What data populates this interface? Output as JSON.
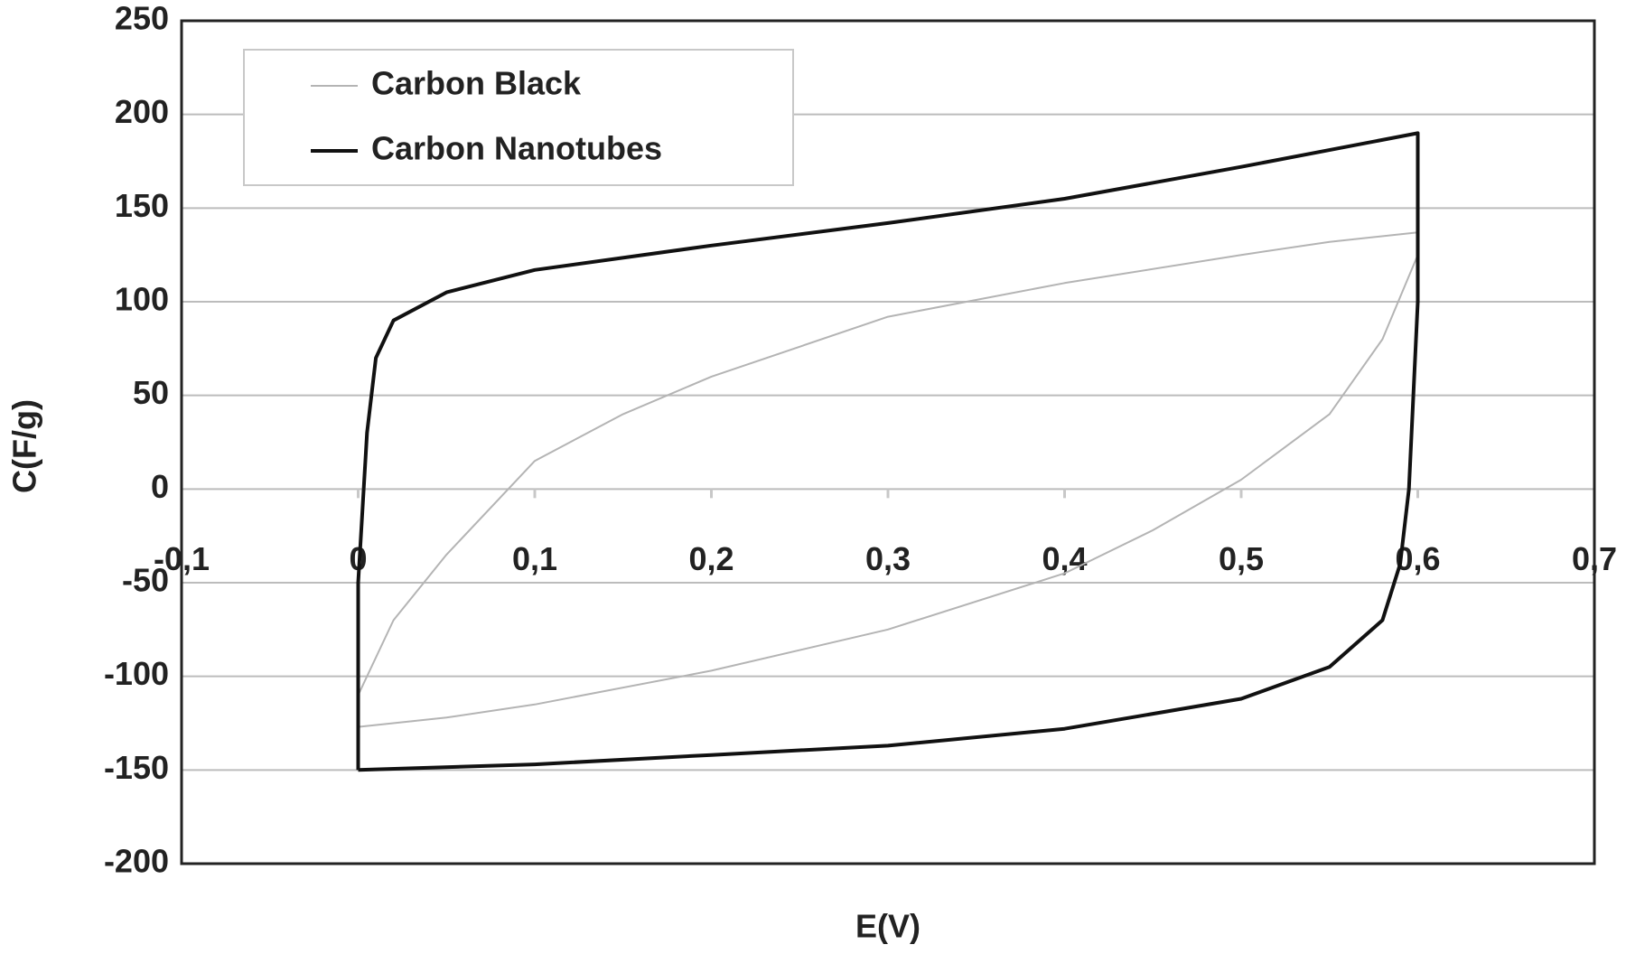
{
  "chart_data": {
    "type": "line",
    "xlabel": "E(V)",
    "ylabel": "C(F/g)",
    "xlim": [
      -0.1,
      0.7
    ],
    "xticks": [
      {
        "value": -0.1,
        "label": "-0,1"
      },
      0,
      {
        "value": 0.1,
        "label": "0,1"
      },
      {
        "value": 0.2,
        "label": "0,2"
      },
      {
        "value": 0.3,
        "label": "0,3"
      },
      {
        "value": 0.4,
        "label": "0,4"
      },
      {
        "value": 0.5,
        "label": "0,5"
      },
      {
        "value": 0.6,
        "label": "0,6"
      },
      {
        "value": 0.7,
        "label": "0,7"
      }
    ],
    "ylim": [
      -200,
      250
    ],
    "yticks": [
      -200,
      -150,
      -100,
      -50,
      0,
      50,
      100,
      150,
      200,
      250
    ],
    "grid": true,
    "legend": "upper left",
    "series": [
      {
        "name": "Carbon Black",
        "color": "#b4b4b4",
        "x": [
          0,
          0.05,
          0.1,
          0.2,
          0.3,
          0.4,
          0.45,
          0.5,
          0.55,
          0.58,
          0.6,
          0.6,
          0.55,
          0.5,
          0.4,
          0.3,
          0.2,
          0.15,
          0.1,
          0.05,
          0.02,
          0
        ],
        "values": [
          -127,
          -122,
          -115,
          -97,
          -75,
          -45,
          -22,
          5,
          40,
          80,
          125,
          137,
          132,
          125,
          110,
          92,
          60,
          40,
          15,
          -35,
          -70,
          -110
        ]
      },
      {
        "name": "Carbon Nanotubes",
        "color": "#111111",
        "x": [
          0,
          0.1,
          0.2,
          0.3,
          0.4,
          0.5,
          0.55,
          0.58,
          0.59,
          0.595,
          0.6,
          0.6,
          0.5,
          0.4,
          0.3,
          0.2,
          0.1,
          0.05,
          0.02,
          0.01,
          0.005,
          0,
          0
        ],
        "values": [
          -150,
          -147,
          -142,
          -137,
          -128,
          -112,
          -95,
          -70,
          -40,
          0,
          100,
          190,
          172,
          155,
          142,
          130,
          117,
          105,
          90,
          70,
          30,
          -50,
          -150
        ]
      }
    ]
  }
}
